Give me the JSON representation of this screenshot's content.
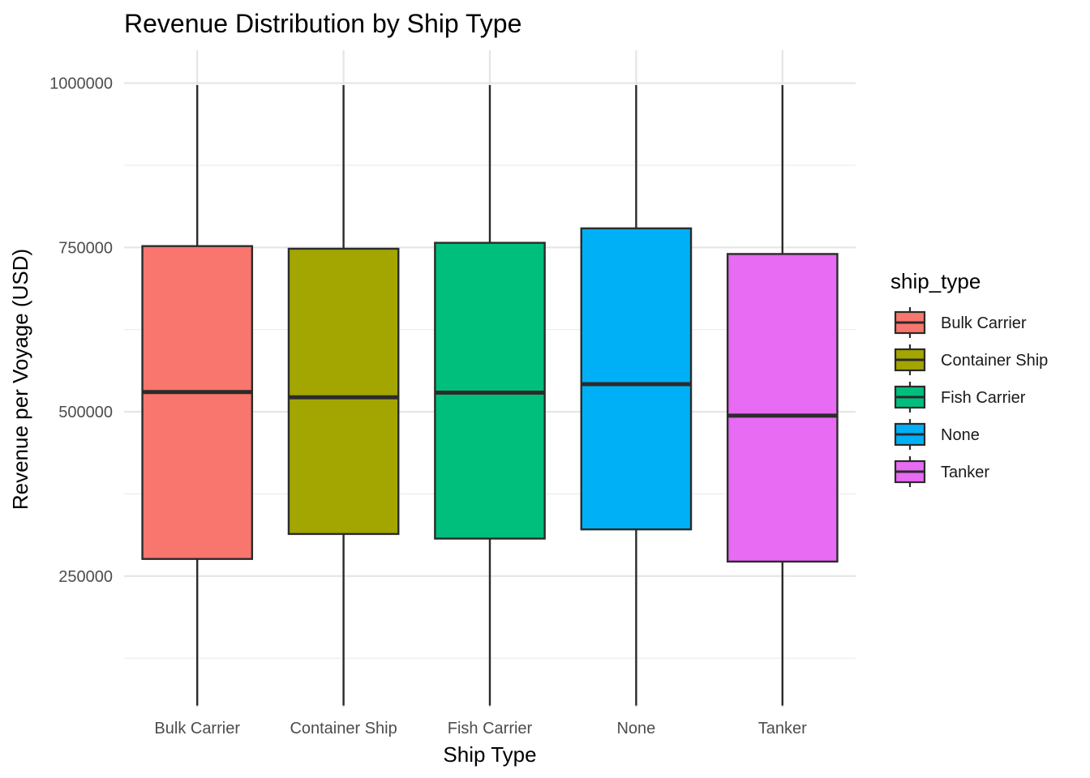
{
  "chart_data": {
    "type": "boxplot",
    "title": "Revenue Distribution by Ship Type",
    "xlabel": "Ship Type",
    "ylabel": "Revenue per Voyage (USD)",
    "ylim": [
      50000,
      1050000
    ],
    "yticks": [
      250000,
      500000,
      750000,
      1000000
    ],
    "yticks_labels": [
      "250000",
      "500000",
      "750000",
      "1000000"
    ],
    "grid": true,
    "legend": {
      "title": "ship_type",
      "position": "right"
    },
    "categories": [
      "Bulk Carrier",
      "Container Ship",
      "Fish Carrier",
      "None",
      "Tanker"
    ],
    "series": [
      {
        "name": "Bulk Carrier",
        "color": "#F8766D",
        "min": 53000,
        "q1": 276000,
        "median": 530000,
        "q3": 752000,
        "max": 997000
      },
      {
        "name": "Container Ship",
        "color": "#A3A500",
        "min": 53000,
        "q1": 314000,
        "median": 522000,
        "q3": 748000,
        "max": 997000
      },
      {
        "name": "Fish Carrier",
        "color": "#00BF7D",
        "min": 53000,
        "q1": 307000,
        "median": 529000,
        "q3": 757000,
        "max": 997000
      },
      {
        "name": "None",
        "color": "#00B0F6",
        "min": 53000,
        "q1": 321000,
        "median": 542000,
        "q3": 779000,
        "max": 997000
      },
      {
        "name": "Tanker",
        "color": "#E76BF3",
        "min": 53000,
        "q1": 272000,
        "median": 494000,
        "q3": 740000,
        "max": 997000
      }
    ]
  }
}
